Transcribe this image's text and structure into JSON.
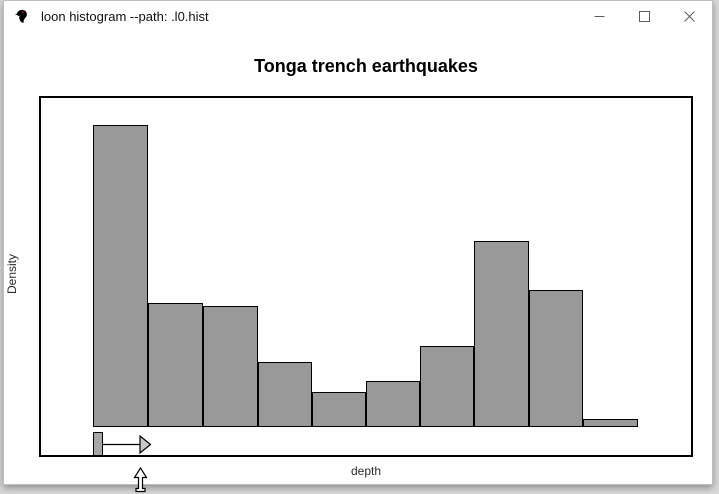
{
  "window": {
    "title": "loon histogram --path: .l0.hist",
    "app_icon": "loon-bird-icon",
    "controls": [
      {
        "name": "minimize",
        "icon": "minimize-icon"
      },
      {
        "name": "maximize",
        "icon": "maximize-icon"
      },
      {
        "name": "close",
        "icon": "close-icon"
      }
    ]
  },
  "chart": {
    "title": "Tonga trench earthquakes",
    "xlabel": "depth",
    "ylabel": "Density"
  },
  "chart_data": {
    "type": "bar",
    "subtype": "histogram",
    "title": "Tonga trench earthquakes",
    "xlabel": "depth",
    "ylabel": "Density",
    "n_bins": 10,
    "categories": [
      "bin1",
      "bin2",
      "bin3",
      "bin4",
      "bin5",
      "bin6",
      "bin7",
      "bin8",
      "bin9",
      "bin10"
    ],
    "values": [
      1.0,
      0.411,
      0.401,
      0.215,
      0.116,
      0.152,
      0.268,
      0.616,
      0.454,
      0.026
    ],
    "values_note": "relative density, tallest bar = 1.0; no numeric tick labels are rendered on either axis",
    "x_ticks": [],
    "y_ticks": [],
    "grid": false,
    "legend": "none",
    "bar_fill": "#999999",
    "bar_border": "#000000"
  },
  "bin_width_widget": {
    "handle_icon": "bin-origin-handle",
    "arrow_icon": "bin-width-arrow-icon"
  },
  "pointer": {
    "icon": "up-arrow-cursor-icon"
  }
}
